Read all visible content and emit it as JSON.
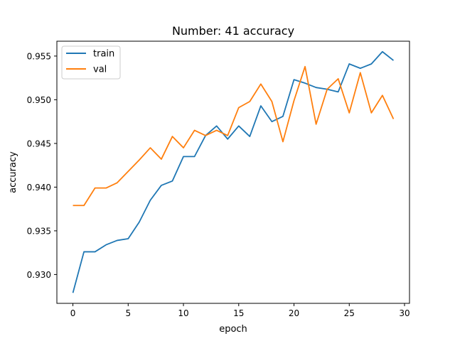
{
  "chart_data": {
    "type": "line",
    "title": "Number: 41 accuracy",
    "xlabel": "epoch",
    "ylabel": "accuracy",
    "xlim": [
      -1.45,
      30.45
    ],
    "ylim": [
      0.9267,
      0.9567
    ],
    "xticks": [
      0,
      5,
      10,
      15,
      20,
      25,
      30
    ],
    "yticks": [
      0.93,
      0.935,
      0.94,
      0.945,
      0.95,
      0.955
    ],
    "ytick_labels": [
      "0.930",
      "0.935",
      "0.940",
      "0.945",
      "0.950",
      "0.955"
    ],
    "grid": false,
    "legend_position": "top-left",
    "x": [
      0,
      1,
      2,
      3,
      4,
      5,
      6,
      7,
      8,
      9,
      10,
      11,
      12,
      13,
      14,
      15,
      16,
      17,
      18,
      19,
      20,
      21,
      22,
      23,
      24,
      25,
      26,
      27,
      28,
      29
    ],
    "series": [
      {
        "name": "train",
        "color": "#1f77b4",
        "values": [
          0.9279,
          0.9326,
          0.9326,
          0.9334,
          0.9339,
          0.9341,
          0.936,
          0.9385,
          0.9402,
          0.9407,
          0.9435,
          0.9435,
          0.9459,
          0.947,
          0.9455,
          0.947,
          0.9458,
          0.9493,
          0.9475,
          0.9481,
          0.9523,
          0.9519,
          0.9514,
          0.9512,
          0.9509,
          0.9541,
          0.9536,
          0.9541,
          0.9555,
          0.9545
        ]
      },
      {
        "name": "val",
        "color": "#ff7f0e",
        "values": [
          0.9379,
          0.9379,
          0.9399,
          0.9399,
          0.9405,
          0.9418,
          0.9431,
          0.9445,
          0.9432,
          0.9458,
          0.9445,
          0.9465,
          0.9459,
          0.9465,
          0.9459,
          0.9491,
          0.9498,
          0.9518,
          0.9498,
          0.9452,
          0.9499,
          0.9538,
          0.9472,
          0.9512,
          0.9524,
          0.9485,
          0.9531,
          0.9485,
          0.9505,
          0.9478
        ]
      }
    ]
  }
}
